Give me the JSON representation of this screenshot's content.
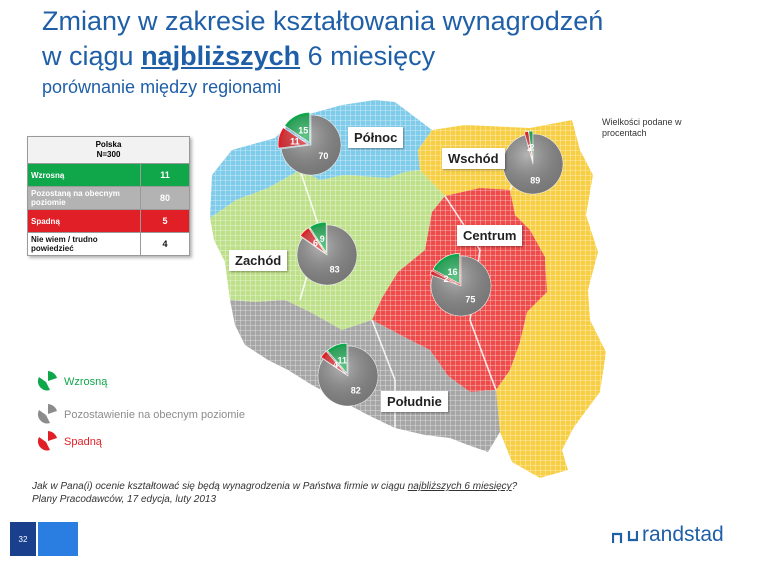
{
  "title": {
    "line1": "Zmiany w zakresie kształtowania wynagrodzeń",
    "line2_pre": "w ciągu ",
    "line2_highlight": "najbliższych",
    "line2_post": " 6 miesięcy",
    "subtitle": "porównanie między regionami"
  },
  "note": "Wielkości podane w procentach",
  "summary_table": {
    "header_line1": "Polska",
    "header_line2": "N=300",
    "rows": [
      {
        "label": "Wzrosną",
        "value": "11"
      },
      {
        "label": "Pozostaną na obecnym poziomie",
        "value": "80"
      },
      {
        "label": "Spadną",
        "value": "5"
      },
      {
        "label": "Nie wiem / trudno powiedzieć",
        "value": "4"
      }
    ]
  },
  "legend": {
    "items": [
      {
        "label": "Wzrosną",
        "color": "#10a64a"
      },
      {
        "label": "Pozostawienie na obecnym poziomie",
        "color": "#8c8c8c"
      },
      {
        "label": "Spadną",
        "color": "#e01f26"
      }
    ]
  },
  "footer": {
    "question_pre": "Jak w Pana(i) ocenie kształtować się będą wynagrodzenia w Państwa firmie w ciągu ",
    "question_underlined": "najbliższych 6 miesięcy",
    "question_post": "?",
    "source": "Plany Pracodawców, 17 edycja, luty 2013"
  },
  "page_number": "32",
  "brand": "randstad",
  "colors": {
    "title": "#1f5fa8",
    "increase": "#10a64a",
    "same": "#8c8c8c",
    "decrease": "#e01f26",
    "region_polnoc": "#7fcbea",
    "region_wschod": "#f7cf45",
    "region_zachod": "#bfe08a",
    "region_centrum": "#ee4b4b",
    "region_poludnie": "#a6a6a6"
  },
  "chart_data": {
    "type": "pie",
    "unit": "%",
    "series_labels": [
      "Wzrosną",
      "Pozostawienie na obecnym poziomie",
      "Spadną"
    ],
    "regions": [
      {
        "name": "Północ",
        "values": {
          "increase": 15,
          "same": 70,
          "decrease": 11
        }
      },
      {
        "name": "Wschód",
        "values": {
          "increase": 2,
          "same": 89,
          "decrease": 2
        }
      },
      {
        "name": "Zachód",
        "values": {
          "increase": 9,
          "same": 83,
          "decrease": 6
        }
      },
      {
        "name": "Centrum",
        "values": {
          "increase": 16,
          "same": 75,
          "decrease": 2
        }
      },
      {
        "name": "Południe",
        "values": {
          "increase": 11,
          "same": 82,
          "decrease": 4
        }
      }
    ]
  }
}
